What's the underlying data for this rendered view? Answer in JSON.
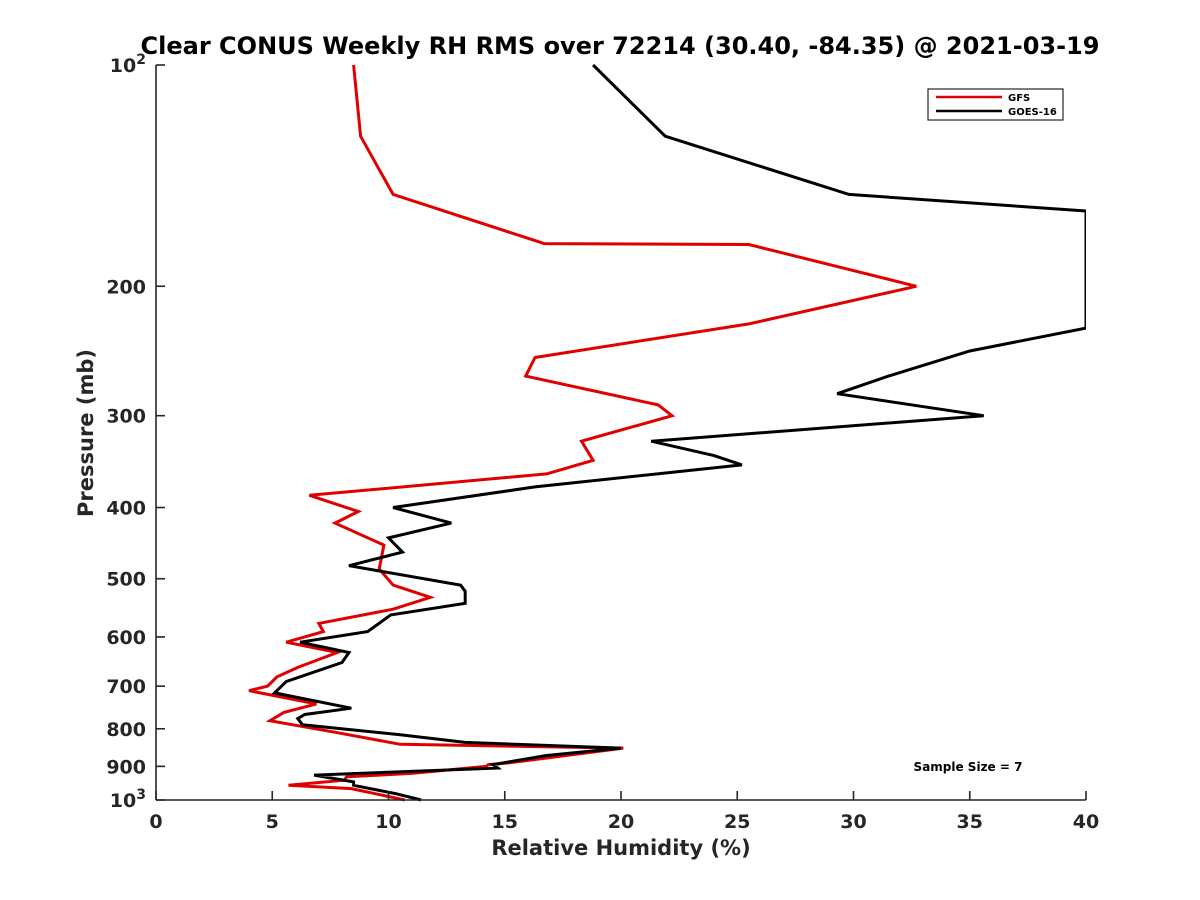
{
  "chart_data": {
    "type": "line",
    "title": "Clear CONUS Weekly RH RMS over 72214 (30.40, -84.35) @ 2021-03-19",
    "xlabel": "Relative Humidity (%)",
    "ylabel": "Pressure (mb)",
    "xlim": [
      0,
      40
    ],
    "ylim": [
      1000,
      100
    ],
    "yscale": "log",
    "yreversed": true,
    "x_ticks": [
      0,
      5,
      10,
      15,
      20,
      25,
      30,
      35,
      40
    ],
    "x_tick_labels": [
      "0",
      "5",
      "10",
      "15",
      "20",
      "25",
      "30",
      "35",
      "40"
    ],
    "y_ticks": [
      100,
      200,
      300,
      400,
      500,
      600,
      700,
      800,
      900,
      1000
    ],
    "y_tick_labels": [
      {
        "base": "10",
        "exp": "2"
      },
      {
        "text": "200"
      },
      {
        "text": "300"
      },
      {
        "text": "400"
      },
      {
        "text": "500"
      },
      {
        "text": "600"
      },
      {
        "text": "700"
      },
      {
        "text": "800"
      },
      {
        "text": "900"
      },
      {
        "base": "10",
        "exp": "3"
      }
    ],
    "legend_position": "top-right",
    "annotation": "Sample Size = 7",
    "series": [
      {
        "name": "GFS",
        "color": "#e00000",
        "points": [
          [
            8.5,
            100
          ],
          [
            8.8,
            125
          ],
          [
            10.2,
            150
          ],
          [
            16.7,
            175
          ],
          [
            25.5,
            175.5
          ],
          [
            32.7,
            200
          ],
          [
            25.5,
            225
          ],
          [
            16.3,
            250
          ],
          [
            15.9,
            265
          ],
          [
            21.6,
            290
          ],
          [
            22.2,
            300
          ],
          [
            18.3,
            325
          ],
          [
            18.8,
            345
          ],
          [
            16.8,
            360
          ],
          [
            6.6,
            385
          ],
          [
            8.7,
            405
          ],
          [
            7.7,
            420
          ],
          [
            9.8,
            450
          ],
          [
            9.6,
            485
          ],
          [
            10.2,
            510
          ],
          [
            11.8,
            530
          ],
          [
            10.2,
            550
          ],
          [
            7.0,
            575
          ],
          [
            7.2,
            590
          ],
          [
            5.6,
            610
          ],
          [
            7.8,
            630
          ],
          [
            6.1,
            660
          ],
          [
            5.2,
            680
          ],
          [
            4.8,
            700
          ],
          [
            4.0,
            710
          ],
          [
            6.9,
            740
          ],
          [
            5.5,
            760
          ],
          [
            4.9,
            780
          ],
          [
            7.8,
            810
          ],
          [
            10.5,
            840
          ],
          [
            20.1,
            850
          ],
          [
            15.2,
            890
          ],
          [
            14.3,
            895
          ],
          [
            14.2,
            900
          ],
          [
            11.0,
            920
          ],
          [
            8.2,
            930
          ],
          [
            8.1,
            940
          ],
          [
            5.7,
            955
          ],
          [
            8.4,
            965
          ],
          [
            10.7,
            1000
          ]
        ]
      },
      {
        "name": "GOES-16",
        "color": "#000000",
        "points": [
          [
            18.8,
            100
          ],
          [
            21.9,
            125
          ],
          [
            29.8,
            150
          ],
          [
            40,
            158
          ],
          [
            40,
            228
          ],
          [
            35.0,
            245
          ],
          [
            31.5,
            265
          ],
          [
            29.3,
            280
          ],
          [
            35.6,
            300
          ],
          [
            21.3,
            325
          ],
          [
            24.0,
            340
          ],
          [
            25.2,
            350
          ],
          [
            16.3,
            375
          ],
          [
            10.2,
            400
          ],
          [
            12.7,
            420
          ],
          [
            10.0,
            440
          ],
          [
            10.6,
            460
          ],
          [
            8.3,
            480
          ],
          [
            13.1,
            510
          ],
          [
            13.3,
            520
          ],
          [
            13.3,
            540
          ],
          [
            10.1,
            560
          ],
          [
            9.1,
            590
          ],
          [
            6.2,
            610
          ],
          [
            8.3,
            630
          ],
          [
            8.0,
            650
          ],
          [
            5.6,
            690
          ],
          [
            5.4,
            700
          ],
          [
            5.1,
            715
          ],
          [
            8.4,
            750
          ],
          [
            6.4,
            765
          ],
          [
            6.1,
            775
          ],
          [
            6.3,
            790
          ],
          [
            10.5,
            815
          ],
          [
            13.3,
            835
          ],
          [
            20.0,
            850
          ],
          [
            16.8,
            870
          ],
          [
            14.5,
            895
          ],
          [
            14.7,
            905
          ],
          [
            6.8,
            925
          ],
          [
            8.5,
            945
          ],
          [
            8.5,
            955
          ],
          [
            10.3,
            980
          ],
          [
            11.4,
            1000
          ]
        ]
      }
    ]
  }
}
